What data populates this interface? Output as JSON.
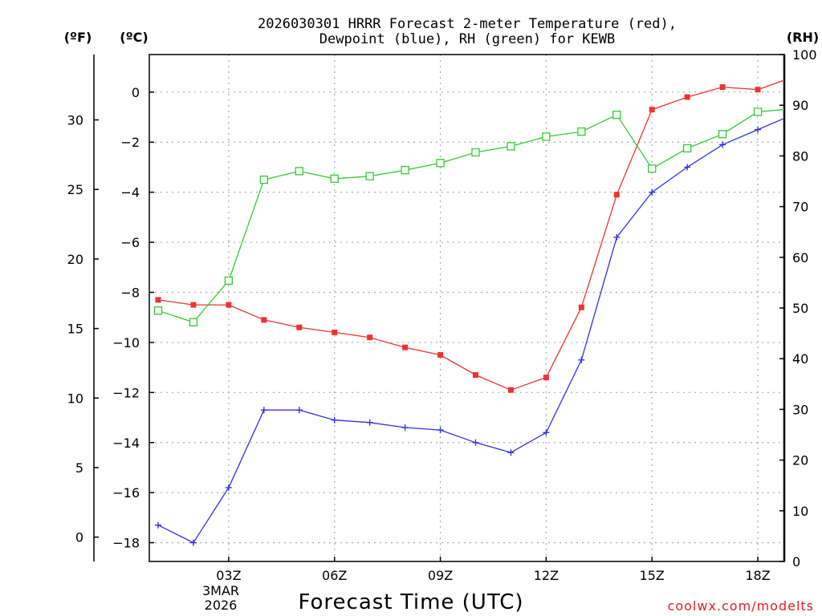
{
  "chart_data": {
    "type": "line",
    "title_lines": [
      "2026030301 HRRR Forecast 2-meter Temperature (red),",
      "Dewpoint (blue), RH (green) for KEWB"
    ],
    "xlabel": "Forecast Time (UTC)",
    "credit": "coolwx.com/modelts",
    "units": {
      "fahrenheit": "(ºF)",
      "celsius": "(ºC)",
      "rh": "(RH)"
    },
    "x": [
      1,
      2,
      3,
      4,
      5,
      6,
      7,
      8,
      9,
      10,
      11,
      12,
      13,
      14,
      15,
      16,
      17,
      18,
      19
    ],
    "xlim": [
      0.75,
      18.75
    ],
    "x_ticks": [
      {
        "x": 3,
        "label": "03Z"
      },
      {
        "x": 6,
        "label": "06Z"
      },
      {
        "x": 9,
        "label": "09Z"
      },
      {
        "x": 12,
        "label": "12Z"
      },
      {
        "x": 15,
        "label": "15Z"
      },
      {
        "x": 18,
        "label": "18Z"
      }
    ],
    "date_labels": [
      "3MAR",
      "2026"
    ],
    "celsius_axis": {
      "ylim": [
        -18.75,
        1.5
      ],
      "ticks": [
        0,
        -2,
        -4,
        -6,
        -8,
        -10,
        -12,
        -14,
        -16,
        -18
      ],
      "tick_labels": [
        "0",
        "−2",
        "−4",
        "−6",
        "−8",
        "−10",
        "−12",
        "−14",
        "−16",
        "−18"
      ]
    },
    "fahrenheit_axis": {
      "ticks": [
        0,
        5,
        10,
        15,
        20,
        25,
        30
      ],
      "tick_labels": [
        "0",
        "5",
        "10",
        "15",
        "20",
        "25",
        "30"
      ]
    },
    "rh_axis": {
      "ylim": [
        0,
        100
      ],
      "ticks": [
        0,
        10,
        20,
        30,
        40,
        50,
        60,
        70,
        80,
        90,
        100
      ],
      "tick_labels": [
        "0",
        "10",
        "20",
        "30",
        "40",
        "50",
        "60",
        "70",
        "80",
        "90",
        "100"
      ]
    },
    "series": [
      {
        "name": "2-meter Temperature",
        "color": "#ee3333",
        "axis": "celsius",
        "marker": "filled-square",
        "values": [
          -8.3,
          -8.5,
          -8.5,
          -9.1,
          -9.4,
          -9.6,
          -9.8,
          -10.2,
          -10.5,
          -11.3,
          -11.9,
          -11.4,
          -8.6,
          -4.1,
          -0.7,
          -0.2,
          0.2,
          0.1,
          0.6
        ]
      },
      {
        "name": "Dewpoint",
        "color": "#3333dd",
        "axis": "celsius",
        "marker": "plus",
        "values": [
          -17.3,
          -18.0,
          -15.8,
          -12.7,
          -12.7,
          -13.1,
          -13.2,
          -13.4,
          -13.5,
          -14.0,
          -14.4,
          -13.6,
          -10.7,
          -5.8,
          -4.0,
          -3.0,
          -2.1,
          -1.5,
          -0.9
        ]
      },
      {
        "name": "RH",
        "color": "#33cc33",
        "axis": "rh",
        "marker": "open-square",
        "values": [
          49.5,
          47.2,
          55.4,
          75.3,
          77.0,
          75.5,
          76.0,
          77.2,
          78.6,
          80.7,
          81.9,
          83.8,
          84.8,
          88.1,
          77.5,
          81.5,
          84.3,
          88.7,
          89.3
        ]
      }
    ]
  }
}
